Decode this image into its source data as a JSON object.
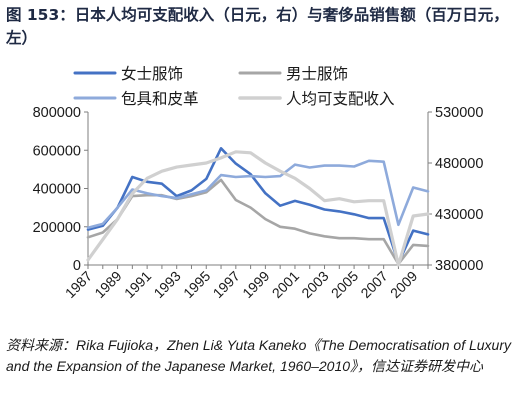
{
  "figure": {
    "title": "图 153：日本人均可支配收入（日元，右）与奢侈品销售额（百万日元，左）",
    "source": "资料来源：Rika Fujioka，Zhen Li& Yuta Kaneko《The Democratisation of Luxury and the Expansion of the Japanese Market, 1960–2010》，信达证券研发中心"
  },
  "chart_data": {
    "type": "line",
    "x": [
      1987,
      1988,
      1989,
      1990,
      1991,
      1992,
      1993,
      1994,
      1995,
      1996,
      1997,
      1998,
      1999,
      2000,
      2001,
      2002,
      2003,
      2004,
      2005,
      2006,
      2007,
      2008,
      2009,
      2010
    ],
    "xticks": [
      "1987",
      "1989",
      "1991",
      "1993",
      "1995",
      "1997",
      "1999",
      "2001",
      "2003",
      "2005",
      "2007",
      "2009"
    ],
    "ylim": [
      0,
      800000
    ],
    "yticks": [
      "0",
      "200000",
      "400000",
      "600000",
      "800000"
    ],
    "y2lim": [
      380000,
      530000
    ],
    "y2ticks": [
      "380000",
      "430000",
      "480000",
      "530000"
    ],
    "legend_position": "top",
    "grid": false,
    "series": [
      {
        "name": "女士服饰",
        "axis": "left",
        "color": "#4472c4",
        "width": 2.6,
        "values": [
          185000,
          205000,
          300000,
          460000,
          435000,
          425000,
          360000,
          390000,
          450000,
          610000,
          530000,
          475000,
          375000,
          310000,
          335000,
          315000,
          290000,
          280000,
          265000,
          245000,
          245000,
          10000,
          180000,
          160000
        ]
      },
      {
        "name": "男士服饰",
        "axis": "left",
        "color": "#a6a6a6",
        "width": 2.6,
        "values": [
          145000,
          170000,
          240000,
          360000,
          365000,
          365000,
          345000,
          360000,
          380000,
          445000,
          340000,
          300000,
          240000,
          200000,
          190000,
          165000,
          150000,
          140000,
          140000,
          135000,
          135000,
          5000,
          105000,
          100000
        ]
      },
      {
        "name": "包具和皮革",
        "axis": "left",
        "color": "#8eaadb",
        "width": 2.6,
        "values": [
          195000,
          215000,
          300000,
          395000,
          375000,
          360000,
          350000,
          370000,
          390000,
          470000,
          460000,
          465000,
          460000,
          465000,
          525000,
          510000,
          520000,
          520000,
          515000,
          545000,
          540000,
          210000,
          405000,
          385000
        ]
      },
      {
        "name": "人均可支配收入",
        "axis": "right",
        "color": "#d0d0d0",
        "width": 3.2,
        "values": [
          385000,
          405000,
          425000,
          450000,
          465000,
          472000,
          476000,
          478000,
          480000,
          485000,
          491000,
          490000,
          480000,
          472000,
          465000,
          455000,
          443000,
          445000,
          442000,
          443000,
          443000,
          380000,
          428000,
          430000
        ]
      }
    ]
  }
}
